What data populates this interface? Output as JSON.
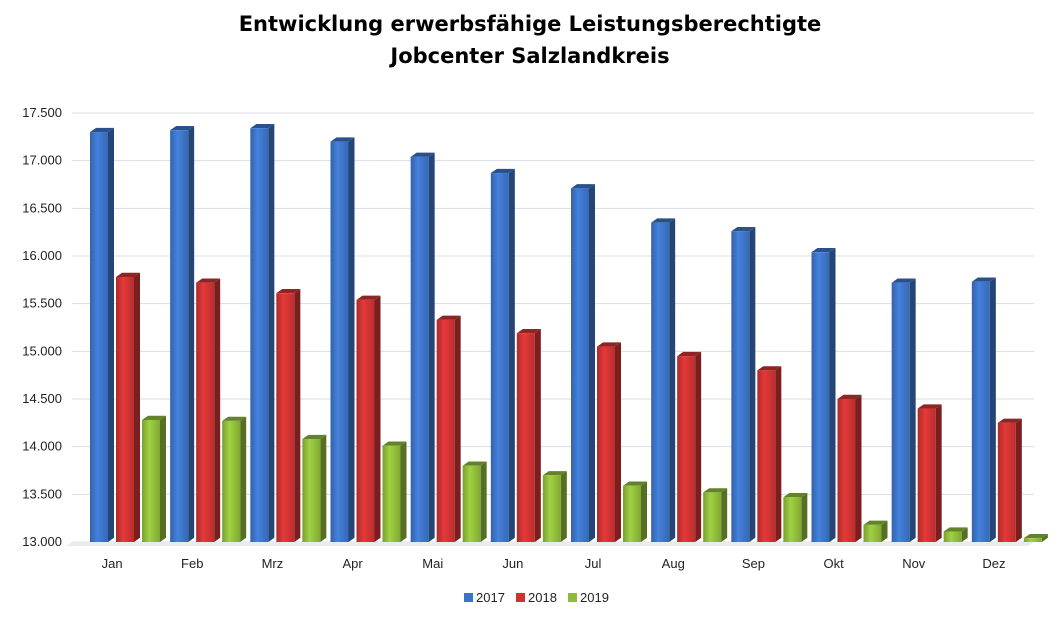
{
  "chart_data": {
    "type": "bar",
    "title": "Entwicklung erwerbsfähige Leistungsberechtigte",
    "subtitle": "Jobcenter Salzlandkreis",
    "xlabel": "",
    "ylabel": "",
    "ylim": [
      13000,
      17500
    ],
    "yticks": [
      "13.000",
      "13.500",
      "14.000",
      "14.500",
      "15.000",
      "15.500",
      "16.000",
      "16.500",
      "17.000",
      "17.500"
    ],
    "ytick_values": [
      13000,
      13500,
      14000,
      14500,
      15000,
      15500,
      16000,
      16500,
      17000,
      17500
    ],
    "categories": [
      "Jan",
      "Feb",
      "Mrz",
      "Apr",
      "Mai",
      "Jun",
      "Jul",
      "Aug",
      "Sep",
      "Okt",
      "Nov",
      "Dez"
    ],
    "series": [
      {
        "name": "2017",
        "color": "#3d73c6",
        "values": [
          17300,
          17320,
          17340,
          17200,
          17040,
          16870,
          16710,
          16350,
          16260,
          16040,
          15720,
          15730
        ]
      },
      {
        "name": "2018",
        "color": "#cc3333",
        "values": [
          15780,
          15720,
          15610,
          15540,
          15330,
          15190,
          15050,
          14950,
          14800,
          14500,
          14400,
          14250
        ]
      },
      {
        "name": "2019",
        "color": "#8fbb3a",
        "values": [
          14280,
          14270,
          14080,
          14010,
          13800,
          13700,
          13590,
          13520,
          13470,
          13180,
          13110,
          13040
        ]
      }
    ],
    "grid": true,
    "legend": "bottom"
  }
}
